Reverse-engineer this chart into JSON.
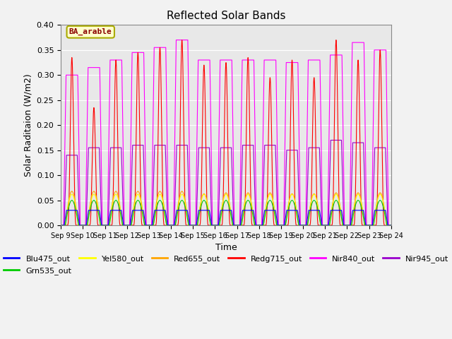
{
  "title": "Reflected Solar Bands",
  "xlabel": "Time",
  "ylabel": "Solar Raditaion (W/m2)",
  "annotation": "BA_arable",
  "annotation_color": "#8B0000",
  "annotation_bg": "#FFFFCC",
  "annotation_border": "#AAAA00",
  "ylim": [
    0.0,
    0.4
  ],
  "yticks": [
    0.0,
    0.05,
    0.1,
    0.15,
    0.2,
    0.25,
    0.3,
    0.35,
    0.4
  ],
  "background_color": "#E8E8E8",
  "grid_color": "#FFFFFF",
  "series_colors": {
    "Blu475_out": "#0000FF",
    "Grn535_out": "#00CC00",
    "Yel580_out": "#FFFF00",
    "Red655_out": "#FFA500",
    "Redg715_out": "#FF0000",
    "Nir840_out": "#FF00FF",
    "Nir945_out": "#9900CC"
  },
  "tick_labels": [
    "Sep 9",
    "Sep 10",
    "Sep 11",
    "Sep 12",
    "Sep 13",
    "Sep 14",
    "Sep 15",
    "Sep 16",
    "Sep 17",
    "Sep 18",
    "Sep 19",
    "Sep 20",
    "Sep 21",
    "Sep 22",
    "Sep 23",
    "Sep 24"
  ],
  "n_days": 15,
  "legend_order": [
    "Blu475_out",
    "Grn535_out",
    "Yel580_out",
    "Red655_out",
    "Redg715_out",
    "Nir840_out",
    "Nir945_out"
  ]
}
